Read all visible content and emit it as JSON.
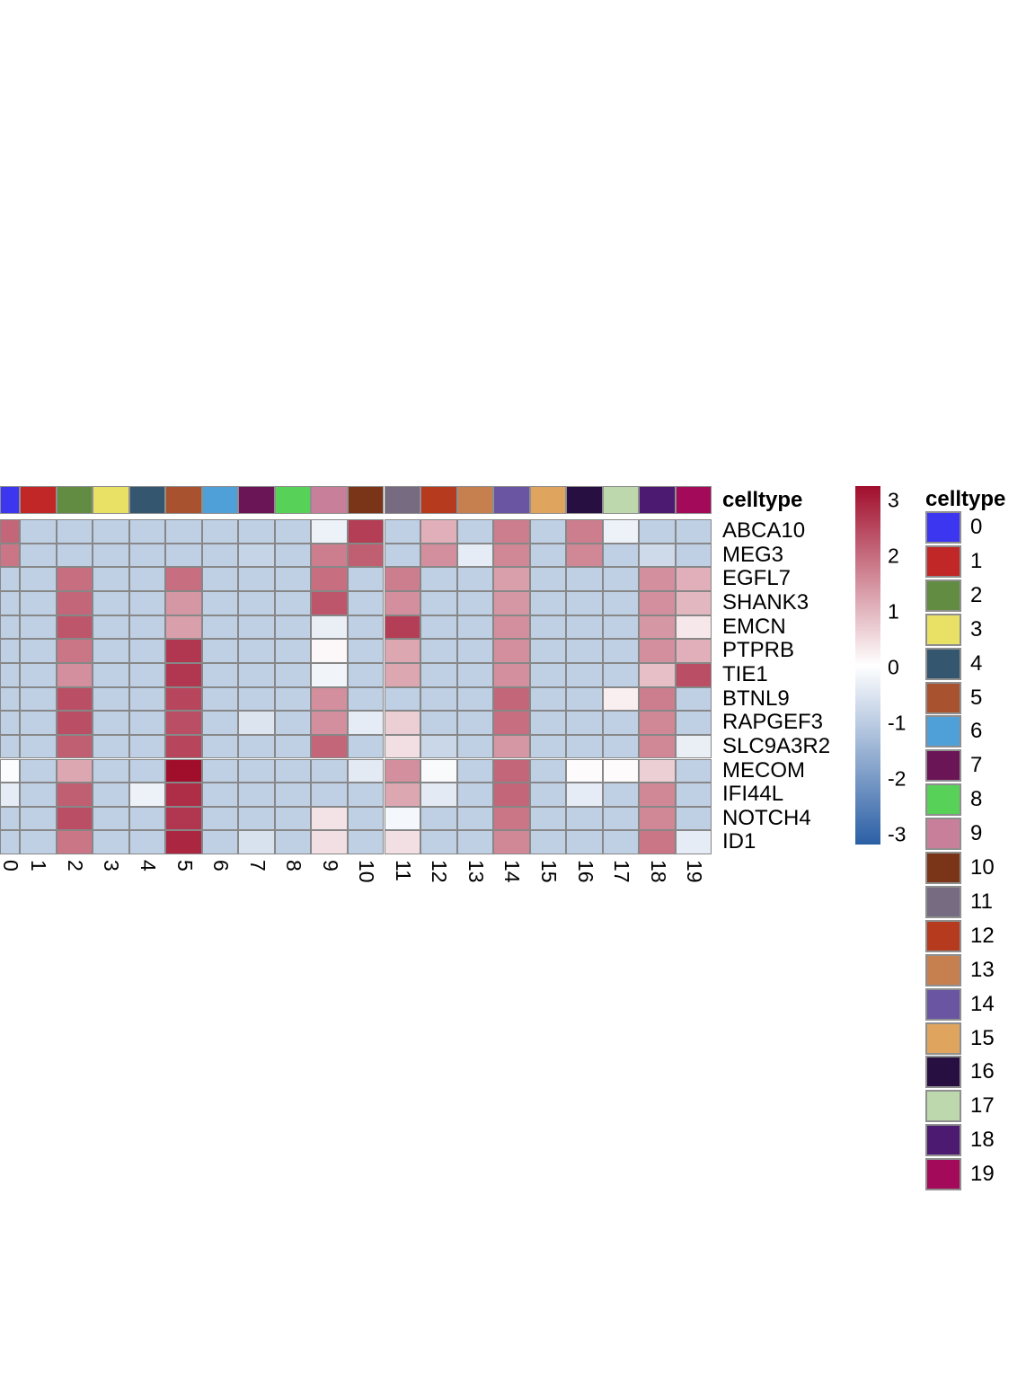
{
  "chart_data": {
    "type": "heatmap",
    "title": "",
    "rows": [
      "ABCA10",
      "MEG3",
      "EGFL7",
      "SHANK3",
      "EMCN",
      "PTPRB",
      "TIE1",
      "BTNL9",
      "RAPGEF3",
      "SLC9A3R2",
      "MECOM",
      "IFI44L",
      "NOTCH4",
      "ID1"
    ],
    "columns": [
      "0",
      "1",
      "2",
      "3",
      "4",
      "5",
      "6",
      "7",
      "8",
      "9",
      "10",
      "11",
      "12",
      "13",
      "14",
      "15",
      "16",
      "17",
      "18",
      "19"
    ],
    "matrix": [
      [
        1.9,
        -0.9,
        -0.9,
        -0.9,
        -0.9,
        -0.9,
        -0.9,
        -0.9,
        -0.9,
        -0.25,
        2.4,
        -0.9,
        1.0,
        -0.9,
        1.6,
        -0.9,
        1.6,
        -0.25,
        -0.9,
        -0.9
      ],
      [
        1.7,
        -0.9,
        -0.9,
        -0.9,
        -0.9,
        -0.9,
        -0.9,
        -0.8,
        -0.9,
        1.6,
        2.0,
        -0.9,
        1.4,
        -0.35,
        1.5,
        -0.9,
        1.5,
        -0.9,
        -0.7,
        -0.9
      ],
      [
        -0.9,
        -0.9,
        1.8,
        -0.9,
        -0.9,
        1.8,
        -0.9,
        -0.9,
        -0.9,
        1.8,
        -0.9,
        1.6,
        -0.9,
        -0.9,
        1.2,
        -0.9,
        -0.9,
        -0.9,
        1.4,
        1.0
      ],
      [
        -0.9,
        -0.9,
        1.9,
        -0.9,
        -0.9,
        1.3,
        -0.9,
        -0.9,
        -0.9,
        2.1,
        -0.9,
        1.4,
        -0.9,
        -0.9,
        1.3,
        -0.9,
        -0.9,
        -0.9,
        1.4,
        0.9
      ],
      [
        -0.9,
        -0.9,
        2.1,
        -0.9,
        -0.9,
        1.2,
        -0.9,
        -0.9,
        -0.9,
        -0.3,
        -0.9,
        2.4,
        -0.9,
        -0.9,
        1.4,
        -0.9,
        -0.9,
        -0.9,
        1.3,
        0.3
      ],
      [
        -0.9,
        -0.9,
        1.7,
        -0.9,
        -0.9,
        2.5,
        -0.9,
        -0.9,
        -0.9,
        0.1,
        -0.9,
        1.1,
        -0.9,
        -0.9,
        1.4,
        -0.9,
        -0.9,
        -0.9,
        1.4,
        1.0
      ],
      [
        -0.9,
        -0.9,
        1.4,
        -0.9,
        -0.9,
        2.5,
        -0.9,
        -0.9,
        -0.9,
        -0.2,
        -0.9,
        1.1,
        -0.9,
        -0.9,
        1.4,
        -0.9,
        -0.9,
        -0.9,
        0.8,
        2.2
      ],
      [
        -0.9,
        -0.9,
        2.2,
        -0.9,
        -0.9,
        2.3,
        -0.9,
        -0.9,
        -0.9,
        1.4,
        -0.9,
        -0.9,
        -0.9,
        -0.9,
        1.9,
        -0.9,
        -0.9,
        0.2,
        1.6,
        -0.9
      ],
      [
        -0.9,
        -0.9,
        2.2,
        -0.9,
        -0.9,
        2.2,
        -0.9,
        -0.5,
        -0.9,
        1.4,
        -0.35,
        0.6,
        -0.9,
        -0.9,
        1.8,
        -0.9,
        -0.9,
        -0.9,
        1.5,
        -0.9
      ],
      [
        -0.9,
        -0.9,
        2.0,
        -0.9,
        -0.9,
        2.3,
        -0.9,
        -0.9,
        -0.9,
        1.9,
        -0.9,
        0.4,
        -0.75,
        -0.9,
        1.3,
        -0.9,
        -0.9,
        -0.9,
        1.5,
        -0.3
      ],
      [
        -0.05,
        -0.9,
        1.1,
        -0.9,
        -0.9,
        3.0,
        -0.9,
        -0.9,
        -0.9,
        -0.9,
        -0.4,
        1.4,
        -0.1,
        -0.9,
        1.9,
        -0.9,
        0.05,
        0.05,
        0.6,
        -0.9
      ],
      [
        -0.35,
        -0.9,
        2.0,
        -0.9,
        -0.25,
        2.6,
        -0.9,
        -0.9,
        -0.9,
        -0.9,
        -0.9,
        1.1,
        -0.4,
        -0.9,
        1.9,
        -0.9,
        -0.35,
        -0.9,
        1.5,
        -0.9
      ],
      [
        -0.9,
        -0.9,
        2.2,
        -0.9,
        -0.9,
        2.5,
        -0.9,
        -0.9,
        -0.9,
        0.35,
        -0.9,
        -0.15,
        -0.9,
        -0.9,
        1.7,
        -0.9,
        -0.9,
        -0.9,
        1.5,
        -0.9
      ],
      [
        -0.9,
        -0.9,
        1.7,
        -0.9,
        -0.9,
        2.7,
        -0.9,
        -0.55,
        -0.9,
        0.4,
        -0.9,
        0.4,
        -0.9,
        -0.9,
        1.5,
        -0.9,
        -0.9,
        -0.9,
        1.7,
        -0.35
      ]
    ],
    "value_range": [
      -3,
      3
    ],
    "colormap": {
      "min_color": "#2b5fa5",
      "mid_color": "#ffffff",
      "max_color": "#a10e2c"
    },
    "colorbar_ticks": [
      "3",
      "2",
      "1",
      "0",
      "-1",
      "-2",
      "-3"
    ],
    "top_annotation": {
      "label": "celltype",
      "colors": [
        "#3d36f0",
        "#c22727",
        "#618c41",
        "#e9e066",
        "#34566e",
        "#a8522f",
        "#4fa0d8",
        "#6a1656",
        "#57d157",
        "#c8809a",
        "#7a3417",
        "#766b80",
        "#b53a1e",
        "#c67f4f",
        "#6a55a3",
        "#dfa55e",
        "#271041",
        "#bed8ae",
        "#4c1a70",
        "#a30a59"
      ]
    },
    "legend": {
      "title": "celltype",
      "entries": [
        {
          "label": "0",
          "color": "#3d36f0"
        },
        {
          "label": "1",
          "color": "#c22727"
        },
        {
          "label": "2",
          "color": "#618c41"
        },
        {
          "label": "3",
          "color": "#e9e066"
        },
        {
          "label": "4",
          "color": "#34566e"
        },
        {
          "label": "5",
          "color": "#a8522f"
        },
        {
          "label": "6",
          "color": "#4fa0d8"
        },
        {
          "label": "7",
          "color": "#6a1656"
        },
        {
          "label": "8",
          "color": "#57d157"
        },
        {
          "label": "9",
          "color": "#c8809a"
        },
        {
          "label": "10",
          "color": "#7a3417"
        },
        {
          "label": "11",
          "color": "#766b80"
        },
        {
          "label": "12",
          "color": "#b53a1e"
        },
        {
          "label": "13",
          "color": "#c67f4f"
        },
        {
          "label": "14",
          "color": "#6a55a3"
        },
        {
          "label": "15",
          "color": "#dfa55e"
        },
        {
          "label": "16",
          "color": "#271041"
        },
        {
          "label": "17",
          "color": "#bed8ae"
        },
        {
          "label": "18",
          "color": "#4c1a70"
        },
        {
          "label": "19",
          "color": "#a30a59"
        }
      ]
    }
  }
}
